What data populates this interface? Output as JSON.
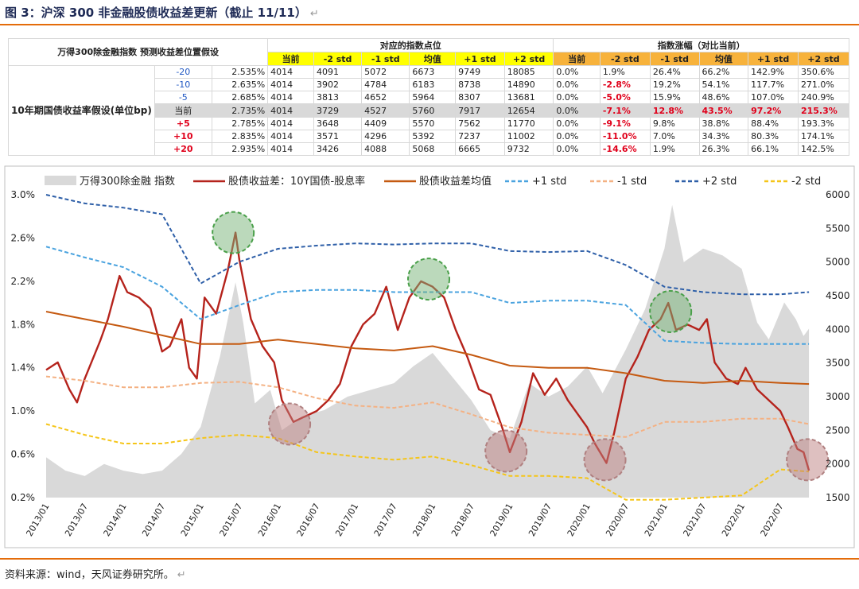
{
  "header": {
    "title": "图 3：沪深 300 非金融股债收益差更新（截止 11/11）",
    "return_mark": "↵"
  },
  "table": {
    "left_header": "万得300除金融指数 预测收益差位置假设",
    "row_group_label": "10年期国债收益率假设(单位bp)",
    "group_points": "对应的指数点位",
    "group_change": "指数涨幅（对比当前）",
    "col_labels": [
      "当前",
      "-2 std",
      "-1 std",
      "均值",
      "+1 std",
      "+2 std"
    ],
    "rows": [
      {
        "label": "-20",
        "yield": "2.535%",
        "points": [
          "4014",
          "4091",
          "5072",
          "6673",
          "9749",
          "18085"
        ],
        "changes": [
          "0.0%",
          "1.9%",
          "26.4%",
          "66.2%",
          "142.9%",
          "350.6%"
        ]
      },
      {
        "label": "-10",
        "yield": "2.635%",
        "points": [
          "4014",
          "3902",
          "4784",
          "6183",
          "8738",
          "14890"
        ],
        "changes": [
          "0.0%",
          "-2.8%",
          "19.2%",
          "54.1%",
          "117.7%",
          "271.0%"
        ]
      },
      {
        "label": "-5",
        "yield": "2.685%",
        "points": [
          "4014",
          "3813",
          "4652",
          "5964",
          "8307",
          "13681"
        ],
        "changes": [
          "0.0%",
          "-5.0%",
          "15.9%",
          "48.6%",
          "107.0%",
          "240.9%"
        ]
      },
      {
        "label": "当前",
        "yield": "2.735%",
        "points": [
          "4014",
          "3729",
          "4527",
          "5760",
          "7917",
          "12654"
        ],
        "changes": [
          "0.0%",
          "-7.1%",
          "12.8%",
          "43.5%",
          "97.2%",
          "215.3%"
        ]
      },
      {
        "label": "+5",
        "yield": "2.785%",
        "points": [
          "4014",
          "3648",
          "4409",
          "5570",
          "7562",
          "11770"
        ],
        "changes": [
          "0.0%",
          "-9.1%",
          "9.8%",
          "38.8%",
          "88.4%",
          "193.3%"
        ]
      },
      {
        "label": "+10",
        "yield": "2.835%",
        "points": [
          "4014",
          "3571",
          "4296",
          "5392",
          "7237",
          "11002"
        ],
        "changes": [
          "0.0%",
          "-11.0%",
          "7.0%",
          "34.3%",
          "80.3%",
          "174.1%"
        ]
      },
      {
        "label": "+20",
        "yield": "2.935%",
        "points": [
          "4014",
          "3426",
          "4088",
          "5068",
          "6665",
          "9732"
        ],
        "changes": [
          "0.0%",
          "-14.6%",
          "1.9%",
          "26.3%",
          "66.1%",
          "142.5%"
        ]
      }
    ]
  },
  "colors": {
    "spread": "#b5231c",
    "mean": "#c55a11",
    "p1": "#4aa3df",
    "m1": "#f4b183",
    "p2": "#2e5fa8",
    "m2": "#f5c518",
    "area": "#d9d9d9",
    "orange_rule": "#e46c0a"
  },
  "chart_data": {
    "type": "line",
    "x_ticks": [
      "2013/01",
      "2013/07",
      "2014/01",
      "2014/07",
      "2015/01",
      "2015/07",
      "2016/01",
      "2016/07",
      "2017/01",
      "2017/07",
      "2018/01",
      "2018/07",
      "2019/01",
      "2019/07",
      "2020/01",
      "2020/07",
      "2021/01",
      "2021/07",
      "2022/01",
      "2022/07"
    ],
    "y_left_ticks": [
      "3.0%",
      "2.6%",
      "2.2%",
      "1.8%",
      "1.4%",
      "1.0%",
      "0.6%",
      "0.2%"
    ],
    "y_left_range": [
      0.2,
      3.0
    ],
    "y_right_ticks": [
      "6000",
      "5500",
      "5000",
      "4500",
      "4000",
      "3500",
      "3000",
      "2500",
      "2000",
      "1500"
    ],
    "y_right_range": [
      1500,
      6000
    ],
    "legend": [
      "万得300除金融 指数",
      "股债收益差：10Y国债-股息率",
      "股债收益差均值",
      "+1 std",
      "-1 std",
      "+2 std",
      "-2 std"
    ],
    "series": [
      {
        "name": "万得300除金融 指数",
        "axis": "right",
        "values": [
          [
            2013.0,
            2100
          ],
          [
            2013.25,
            1900
          ],
          [
            2013.5,
            1820
          ],
          [
            2013.75,
            2000
          ],
          [
            2014.0,
            1900
          ],
          [
            2014.25,
            1850
          ],
          [
            2014.5,
            1900
          ],
          [
            2014.75,
            2150
          ],
          [
            2015.0,
            2550
          ],
          [
            2015.25,
            3600
          ],
          [
            2015.45,
            4700
          ],
          [
            2015.55,
            4100
          ],
          [
            2015.7,
            2900
          ],
          [
            2015.9,
            3100
          ],
          [
            2016.05,
            2500
          ],
          [
            2016.3,
            2700
          ],
          [
            2016.6,
            2800
          ],
          [
            2016.9,
            3000
          ],
          [
            2017.2,
            3100
          ],
          [
            2017.5,
            3200
          ],
          [
            2017.75,
            3450
          ],
          [
            2018.0,
            3650
          ],
          [
            2018.25,
            3300
          ],
          [
            2018.5,
            2950
          ],
          [
            2018.75,
            2500
          ],
          [
            2019.0,
            2380
          ],
          [
            2019.25,
            3200
          ],
          [
            2019.5,
            3000
          ],
          [
            2019.75,
            3150
          ],
          [
            2020.0,
            3450
          ],
          [
            2020.2,
            3050
          ],
          [
            2020.5,
            3700
          ],
          [
            2020.75,
            4300
          ],
          [
            2021.0,
            5200
          ],
          [
            2021.1,
            5850
          ],
          [
            2021.25,
            5000
          ],
          [
            2021.5,
            5200
          ],
          [
            2021.75,
            5100
          ],
          [
            2022.0,
            4900
          ],
          [
            2022.2,
            4100
          ],
          [
            2022.35,
            3850
          ],
          [
            2022.55,
            4400
          ],
          [
            2022.7,
            4150
          ],
          [
            2022.8,
            3900
          ],
          [
            2022.87,
            4010
          ]
        ]
      },
      {
        "name": "股债收益差：10Y国债-股息率",
        "axis": "left",
        "values": [
          [
            2013.0,
            1.38
          ],
          [
            2013.15,
            1.45
          ],
          [
            2013.3,
            1.2
          ],
          [
            2013.4,
            1.08
          ],
          [
            2013.5,
            1.3
          ],
          [
            2013.7,
            1.65
          ],
          [
            2013.8,
            1.85
          ],
          [
            2013.95,
            2.25
          ],
          [
            2014.05,
            2.1
          ],
          [
            2014.2,
            2.05
          ],
          [
            2014.35,
            1.95
          ],
          [
            2014.5,
            1.55
          ],
          [
            2014.6,
            1.6
          ],
          [
            2014.75,
            1.85
          ],
          [
            2014.85,
            1.4
          ],
          [
            2014.95,
            1.3
          ],
          [
            2015.05,
            2.05
          ],
          [
            2015.2,
            1.9
          ],
          [
            2015.35,
            2.3
          ],
          [
            2015.45,
            2.65
          ],
          [
            2015.5,
            2.4
          ],
          [
            2015.65,
            1.85
          ],
          [
            2015.8,
            1.6
          ],
          [
            2015.95,
            1.45
          ],
          [
            2016.05,
            1.1
          ],
          [
            2016.2,
            0.9
          ],
          [
            2016.35,
            0.95
          ],
          [
            2016.5,
            1.0
          ],
          [
            2016.65,
            1.1
          ],
          [
            2016.8,
            1.25
          ],
          [
            2016.95,
            1.6
          ],
          [
            2017.1,
            1.8
          ],
          [
            2017.25,
            1.9
          ],
          [
            2017.4,
            2.15
          ],
          [
            2017.55,
            1.75
          ],
          [
            2017.7,
            2.05
          ],
          [
            2017.85,
            2.2
          ],
          [
            2018.0,
            2.15
          ],
          [
            2018.15,
            2.05
          ],
          [
            2018.3,
            1.75
          ],
          [
            2018.45,
            1.5
          ],
          [
            2018.6,
            1.2
          ],
          [
            2018.75,
            1.15
          ],
          [
            2018.9,
            0.85
          ],
          [
            2019.0,
            0.62
          ],
          [
            2019.15,
            0.9
          ],
          [
            2019.3,
            1.35
          ],
          [
            2019.45,
            1.15
          ],
          [
            2019.6,
            1.3
          ],
          [
            2019.75,
            1.1
          ],
          [
            2019.9,
            0.95
          ],
          [
            2020.0,
            0.85
          ],
          [
            2020.1,
            0.7
          ],
          [
            2020.25,
            0.52
          ],
          [
            2020.35,
            0.8
          ],
          [
            2020.5,
            1.3
          ],
          [
            2020.65,
            1.5
          ],
          [
            2020.8,
            1.75
          ],
          [
            2020.95,
            1.85
          ],
          [
            2021.05,
            2.0
          ],
          [
            2021.15,
            1.75
          ],
          [
            2021.3,
            1.8
          ],
          [
            2021.45,
            1.75
          ],
          [
            2021.55,
            1.85
          ],
          [
            2021.65,
            1.45
          ],
          [
            2021.8,
            1.3
          ],
          [
            2021.95,
            1.25
          ],
          [
            2022.05,
            1.4
          ],
          [
            2022.2,
            1.2
          ],
          [
            2022.35,
            1.1
          ],
          [
            2022.5,
            1.0
          ],
          [
            2022.6,
            0.85
          ],
          [
            2022.72,
            0.65
          ],
          [
            2022.8,
            0.62
          ],
          [
            2022.87,
            0.45
          ]
        ]
      },
      {
        "name": "股债收益差均值",
        "axis": "left",
        "values": [
          [
            2013.0,
            1.92
          ],
          [
            2013.5,
            1.85
          ],
          [
            2014.0,
            1.78
          ],
          [
            2014.5,
            1.7
          ],
          [
            2015.0,
            1.62
          ],
          [
            2015.5,
            1.62
          ],
          [
            2016.0,
            1.66
          ],
          [
            2016.5,
            1.62
          ],
          [
            2017.0,
            1.58
          ],
          [
            2017.5,
            1.56
          ],
          [
            2018.0,
            1.6
          ],
          [
            2018.5,
            1.52
          ],
          [
            2019.0,
            1.42
          ],
          [
            2019.5,
            1.4
          ],
          [
            2020.0,
            1.4
          ],
          [
            2020.5,
            1.35
          ],
          [
            2021.0,
            1.28
          ],
          [
            2021.5,
            1.26
          ],
          [
            2022.0,
            1.28
          ],
          [
            2022.5,
            1.26
          ],
          [
            2022.87,
            1.25
          ]
        ]
      },
      {
        "name": "+1 std",
        "axis": "left",
        "values": [
          [
            2013.0,
            2.52
          ],
          [
            2013.5,
            2.42
          ],
          [
            2014.0,
            2.33
          ],
          [
            2014.5,
            2.15
          ],
          [
            2015.0,
            1.85
          ],
          [
            2015.5,
            1.98
          ],
          [
            2016.0,
            2.1
          ],
          [
            2016.5,
            2.12
          ],
          [
            2017.0,
            2.12
          ],
          [
            2017.5,
            2.1
          ],
          [
            2018.0,
            2.1
          ],
          [
            2018.5,
            2.1
          ],
          [
            2019.0,
            2.0
          ],
          [
            2019.5,
            2.02
          ],
          [
            2020.0,
            2.02
          ],
          [
            2020.5,
            1.98
          ],
          [
            2021.0,
            1.65
          ],
          [
            2021.5,
            1.63
          ],
          [
            2022.0,
            1.62
          ],
          [
            2022.5,
            1.62
          ],
          [
            2022.87,
            1.62
          ]
        ]
      },
      {
        "name": "-1 std",
        "axis": "left",
        "values": [
          [
            2013.0,
            1.32
          ],
          [
            2013.5,
            1.28
          ],
          [
            2014.0,
            1.22
          ],
          [
            2014.5,
            1.22
          ],
          [
            2015.0,
            1.26
          ],
          [
            2015.5,
            1.27
          ],
          [
            2016.0,
            1.22
          ],
          [
            2016.5,
            1.12
          ],
          [
            2017.0,
            1.05
          ],
          [
            2017.5,
            1.03
          ],
          [
            2018.0,
            1.08
          ],
          [
            2018.5,
            0.97
          ],
          [
            2019.0,
            0.85
          ],
          [
            2019.5,
            0.8
          ],
          [
            2020.0,
            0.78
          ],
          [
            2020.5,
            0.76
          ],
          [
            2021.0,
            0.9
          ],
          [
            2021.5,
            0.9
          ],
          [
            2022.0,
            0.93
          ],
          [
            2022.5,
            0.93
          ],
          [
            2022.87,
            0.88
          ]
        ]
      },
      {
        "name": "+2 std",
        "axis": "left",
        "values": [
          [
            2013.0,
            3.0
          ],
          [
            2013.5,
            2.92
          ],
          [
            2014.0,
            2.88
          ],
          [
            2014.5,
            2.82
          ],
          [
            2015.0,
            2.18
          ],
          [
            2015.5,
            2.38
          ],
          [
            2016.0,
            2.5
          ],
          [
            2016.5,
            2.53
          ],
          [
            2017.0,
            2.55
          ],
          [
            2017.5,
            2.54
          ],
          [
            2018.0,
            2.55
          ],
          [
            2018.5,
            2.55
          ],
          [
            2019.0,
            2.48
          ],
          [
            2019.5,
            2.47
          ],
          [
            2020.0,
            2.48
          ],
          [
            2020.5,
            2.35
          ],
          [
            2021.0,
            2.15
          ],
          [
            2021.5,
            2.1
          ],
          [
            2022.0,
            2.08
          ],
          [
            2022.5,
            2.08
          ],
          [
            2022.87,
            2.1
          ]
        ]
      },
      {
        "name": "-2 std",
        "axis": "left",
        "values": [
          [
            2013.0,
            0.88
          ],
          [
            2013.5,
            0.78
          ],
          [
            2014.0,
            0.7
          ],
          [
            2014.5,
            0.7
          ],
          [
            2015.0,
            0.75
          ],
          [
            2015.5,
            0.78
          ],
          [
            2016.0,
            0.75
          ],
          [
            2016.5,
            0.62
          ],
          [
            2017.0,
            0.58
          ],
          [
            2017.5,
            0.55
          ],
          [
            2018.0,
            0.58
          ],
          [
            2018.5,
            0.5
          ],
          [
            2019.0,
            0.4
          ],
          [
            2019.5,
            0.4
          ],
          [
            2020.0,
            0.38
          ],
          [
            2020.5,
            0.18
          ],
          [
            2021.0,
            0.18
          ],
          [
            2021.5,
            0.2
          ],
          [
            2022.0,
            0.22
          ],
          [
            2022.5,
            0.46
          ],
          [
            2022.87,
            0.44
          ]
        ]
      }
    ],
    "annotations": [
      {
        "type": "circle",
        "color": "green",
        "x": 2015.42,
        "y": 2.65
      },
      {
        "type": "circle",
        "color": "red",
        "x": 2016.15,
        "y": 0.88
      },
      {
        "type": "circle",
        "color": "green",
        "x": 2017.95,
        "y": 2.22
      },
      {
        "type": "circle",
        "color": "red",
        "x": 2018.95,
        "y": 0.63
      },
      {
        "type": "circle",
        "color": "red",
        "x": 2020.23,
        "y": 0.55
      },
      {
        "type": "circle",
        "color": "green",
        "x": 2021.08,
        "y": 1.92
      },
      {
        "type": "circle",
        "color": "red",
        "x": 2022.85,
        "y": 0.55
      }
    ]
  },
  "footer": {
    "source": "资料来源：wind，天风证券研究所。",
    "return_mark": "↵"
  }
}
